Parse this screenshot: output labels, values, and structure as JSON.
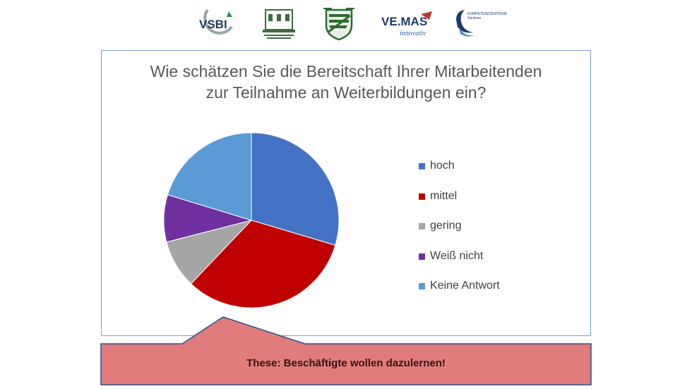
{
  "logos": [
    {
      "name": "vsbi-logo",
      "text": "VSBI"
    },
    {
      "name": "building-seal-logo",
      "text": ""
    },
    {
      "name": "saxony-crest-logo",
      "text": ""
    },
    {
      "name": "vemas-logo",
      "text": "VE.MAS",
      "subtext": "innovativ"
    },
    {
      "name": "kompetenzzentrum-logo",
      "text": "KOMPETENZZENTRUM",
      "subtext": "Sachsen"
    }
  ],
  "chart_data": {
    "type": "pie",
    "title_lines": [
      "Wie schätzen Sie die Bereitschaft Ihrer Mitarbeitenden",
      "zur Teilnahme an Weiterbildungen ein?"
    ],
    "categories": [
      "hoch",
      "mittel",
      "gering",
      "Weiß nicht",
      "Keine Antwort"
    ],
    "values": [
      29.6,
      32.5,
      8.9,
      8.7,
      20.3
    ],
    "colors": [
      "#4472c4",
      "#c00000",
      "#a5a5a5",
      "#7030a0",
      "#5b9bd5"
    ],
    "legend_position": "right",
    "start_angle_deg": 0,
    "direction": "clockwise"
  },
  "callout": {
    "text": "These: Beschäftigte wollen dazulernen!",
    "fill": "#e07c7c",
    "border": "#2f4f8f"
  }
}
